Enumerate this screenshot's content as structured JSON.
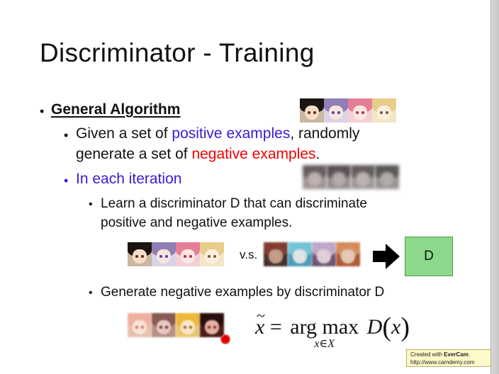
{
  "slide": {
    "title": "Discriminator - Training",
    "bullets": {
      "heading": "General Algorithm",
      "given_prefix": "Given a set of ",
      "positive_examples": "positive examples",
      "given_middle": ", randomly",
      "given_line2_prefix": "generate a set of ",
      "negative_examples": "negative examples",
      "given_line2_suffix": ".",
      "iteration": "In each iteration",
      "learn_line1": "Learn a discriminator D that can discriminate",
      "learn_line2": "positive and negative examples.",
      "generate": "Generate negative examples by discriminator D"
    },
    "vs_label": "v.s.",
    "d_box_label": "D",
    "formula": {
      "x": "x",
      "tilde": "~",
      "equals": "=",
      "argmax": "arg max",
      "sub": "x∈X",
      "func": "D",
      "open": "(",
      "arg": "x",
      "close": ")"
    },
    "watermark": {
      "line1_prefix": "Created with ",
      "line1_brand": "EverCam",
      "line1_suffix": ".",
      "line2": "http://www.camdemy.com"
    }
  },
  "colors": {
    "positive_text": "#3a1bd6",
    "negative_text": "#f00000",
    "d_box": "#8cd98c"
  },
  "icons": [
    "bullet-dot",
    "right-arrow-icon",
    "cursor-pointer-icon"
  ]
}
